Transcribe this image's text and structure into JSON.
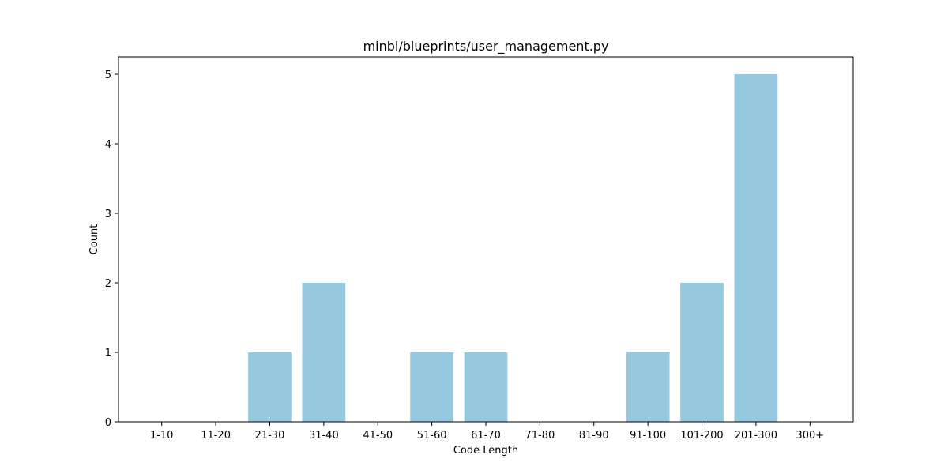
{
  "chart_data": {
    "type": "bar",
    "title": "minbl/blueprints/user_management.py",
    "xlabel": "Code Length",
    "ylabel": "Count",
    "categories": [
      "1-10",
      "11-20",
      "21-30",
      "31-40",
      "41-50",
      "51-60",
      "61-70",
      "71-80",
      "81-90",
      "91-100",
      "101-200",
      "201-300",
      "300+"
    ],
    "values": [
      0,
      0,
      1,
      2,
      0,
      1,
      1,
      0,
      0,
      1,
      2,
      5,
      0
    ],
    "ylim": [
      0,
      5.25
    ],
    "yticks": [
      0,
      1,
      2,
      3,
      4,
      5
    ],
    "bar_color": "#96c9de",
    "grid": false,
    "legend": "none"
  }
}
